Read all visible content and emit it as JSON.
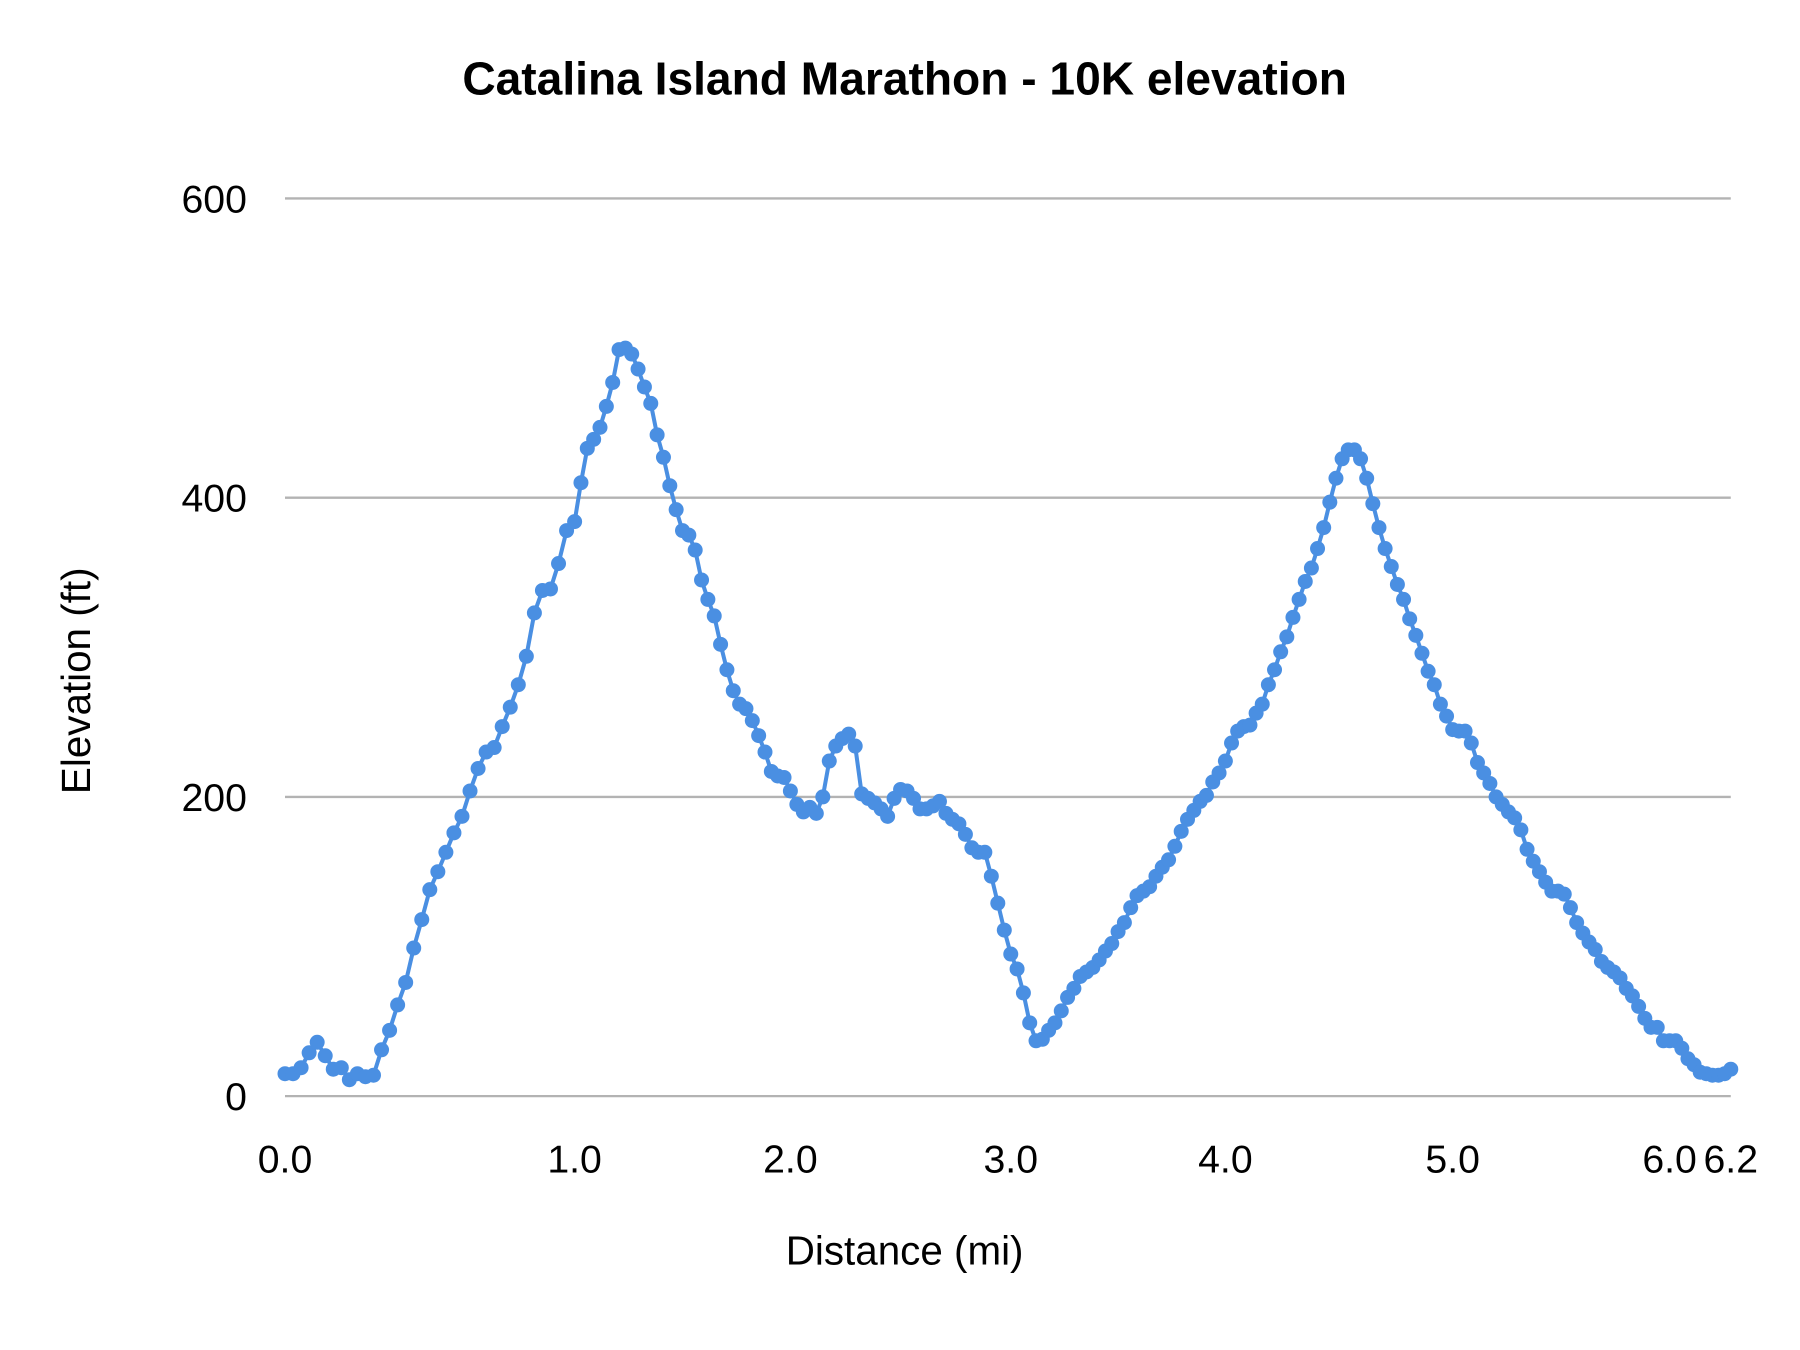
{
  "chart_data": {
    "type": "line",
    "title": "Catalina Island Marathon - 10K elevation",
    "xlabel": "Distance (mi)",
    "ylabel": "Elevation (ft)",
    "ylim": [
      0,
      600
    ],
    "y_ticks": [
      "0",
      "200",
      "400",
      "600"
    ],
    "x_axis": "category",
    "x_ticks": [
      {
        "label": "0.0",
        "index": 0
      },
      {
        "label": "1.0",
        "index": 36
      },
      {
        "label": "2.0",
        "index": 70
      },
      {
        "label": "3.0",
        "index": 104
      },
      {
        "label": "4.0",
        "index": 138
      },
      {
        "label": "5.0",
        "index": 175
      },
      {
        "label": "6.0",
        "index": 210
      },
      {
        "label": "6.2",
        "index": 220
      }
    ],
    "grid": true,
    "legend": "none",
    "colors": {
      "series": "#4a8fe2",
      "grid": "#b3b3b3"
    },
    "series": [
      {
        "values": [
          15,
          15,
          19,
          29,
          36,
          27,
          18,
          19,
          11,
          15,
          13,
          14,
          31,
          44,
          61,
          76,
          99,
          118,
          138,
          150,
          163,
          176,
          187,
          204,
          219,
          230,
          233,
          247,
          260,
          275,
          294,
          323,
          338,
          339,
          356,
          378,
          384,
          410,
          433,
          439,
          447,
          461,
          477,
          499,
          500,
          496,
          486,
          474,
          463,
          442,
          427,
          408,
          392,
          378,
          375,
          365,
          345,
          332,
          321,
          302,
          285,
          271,
          262,
          259,
          251,
          241,
          230,
          217,
          214,
          213,
          204,
          195,
          190,
          193,
          189,
          200,
          224,
          234,
          239,
          242,
          234,
          202,
          199,
          196,
          192,
          187,
          199,
          205,
          204,
          199,
          192,
          192,
          194,
          197,
          189,
          185,
          182,
          175,
          166,
          163,
          163,
          147,
          129,
          111,
          95,
          85,
          69,
          49,
          37,
          38,
          44,
          49,
          57,
          66,
          72,
          80,
          83,
          86,
          91,
          97,
          102,
          110,
          116,
          126,
          134,
          137,
          140,
          147,
          153,
          158,
          167,
          177,
          185,
          191,
          197,
          201,
          210,
          216,
          224,
          236,
          244,
          247,
          248,
          256,
          262,
          275,
          285,
          297,
          307,
          320,
          332,
          344,
          353,
          366,
          380,
          397,
          413,
          426,
          432,
          432,
          426,
          413,
          396,
          380,
          366,
          354,
          342,
          332,
          319,
          308,
          296,
          284,
          275,
          262,
          254,
          245,
          244,
          244,
          236,
          223,
          216,
          209,
          200,
          195,
          190,
          186,
          178,
          165,
          157,
          150,
          143,
          137,
          137,
          135,
          126,
          116,
          109,
          103,
          98,
          90,
          86,
          83,
          79,
          72,
          67,
          60,
          52,
          46,
          46,
          37,
          37,
          37,
          32,
          25,
          21,
          16,
          15,
          14,
          14,
          15,
          18
        ]
      }
    ]
  }
}
